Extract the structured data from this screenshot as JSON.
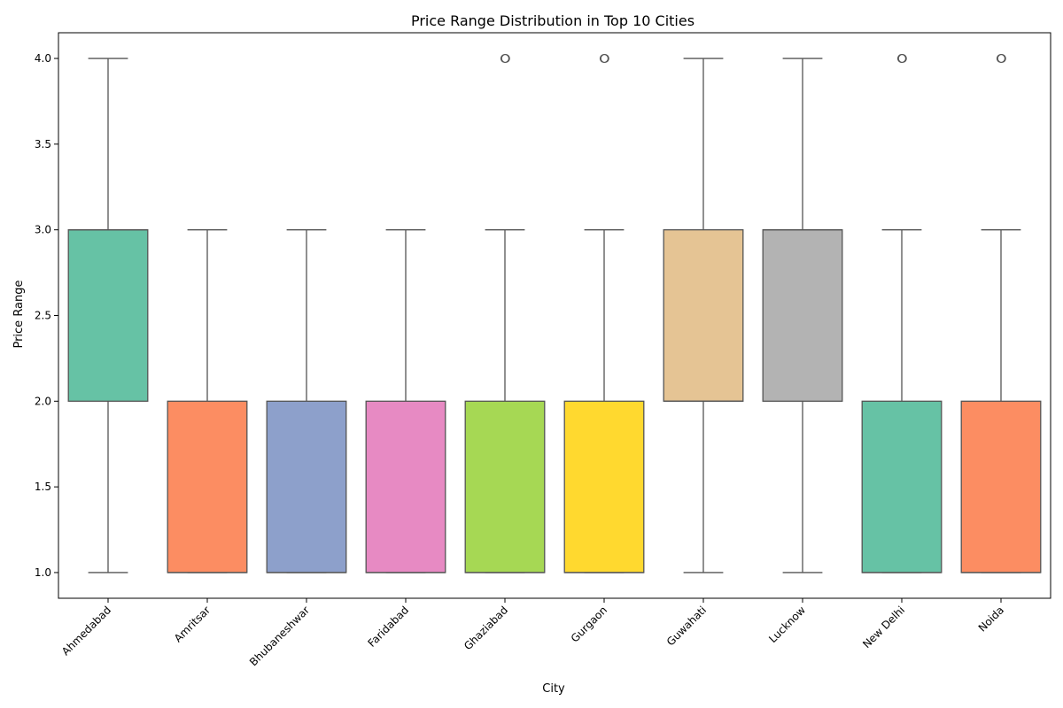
{
  "chart_data": {
    "type": "box",
    "title": "Price Range Distribution in Top 10 Cities",
    "xlabel": "City",
    "ylabel": "Price Range",
    "ylim": [
      0.85,
      4.15
    ],
    "yticks": [
      1.0,
      1.5,
      2.0,
      2.5,
      3.0,
      3.5,
      4.0
    ],
    "ytick_labels": [
      "1.0",
      "1.5",
      "2.0",
      "2.5",
      "3.0",
      "3.5",
      "4.0"
    ],
    "grid": false,
    "categories": [
      "Ahmedabad",
      "Amritsar",
      "Bhubaneshwar",
      "Faridabad",
      "Ghaziabad",
      "Gurgaon",
      "Guwahati",
      "Lucknow",
      "New Delhi",
      "Noida"
    ],
    "boxes": [
      {
        "category": "Ahmedabad",
        "whisker_low": 1,
        "q1": 2,
        "median": 3,
        "q3": 3,
        "whisker_high": 4,
        "outliers": [],
        "color": "#66c2a5"
      },
      {
        "category": "Amritsar",
        "whisker_low": 1,
        "q1": 1,
        "median": 1,
        "q3": 2,
        "whisker_high": 3,
        "outliers": [],
        "color": "#fc8d62"
      },
      {
        "category": "Bhubaneshwar",
        "whisker_low": 1,
        "q1": 1,
        "median": 1,
        "q3": 2,
        "whisker_high": 3,
        "outliers": [],
        "color": "#8da0cb"
      },
      {
        "category": "Faridabad",
        "whisker_low": 1,
        "q1": 1,
        "median": 1,
        "q3": 2,
        "whisker_high": 3,
        "outliers": [],
        "color": "#e78ac3"
      },
      {
        "category": "Ghaziabad",
        "whisker_low": 1,
        "q1": 1,
        "median": 1,
        "q3": 2,
        "whisker_high": 3,
        "outliers": [
          4
        ],
        "color": "#a6d854"
      },
      {
        "category": "Gurgaon",
        "whisker_low": 1,
        "q1": 1,
        "median": 1,
        "q3": 2,
        "whisker_high": 3,
        "outliers": [
          4
        ],
        "color": "#ffd92f"
      },
      {
        "category": "Guwahati",
        "whisker_low": 1,
        "q1": 2,
        "median": 2,
        "q3": 3,
        "whisker_high": 4,
        "outliers": [],
        "color": "#e5c494"
      },
      {
        "category": "Lucknow",
        "whisker_low": 1,
        "q1": 2,
        "median": 3,
        "q3": 3,
        "whisker_high": 4,
        "outliers": [],
        "color": "#b3b3b3"
      },
      {
        "category": "New Delhi",
        "whisker_low": 1,
        "q1": 1,
        "median": 1,
        "q3": 2,
        "whisker_high": 3,
        "outliers": [
          4
        ],
        "color": "#66c2a5"
      },
      {
        "category": "Noida",
        "whisker_low": 1,
        "q1": 1,
        "median": 1,
        "q3": 2,
        "whisker_high": 3,
        "outliers": [
          4
        ],
        "color": "#fc8d62"
      }
    ],
    "line_color": "#555555"
  }
}
